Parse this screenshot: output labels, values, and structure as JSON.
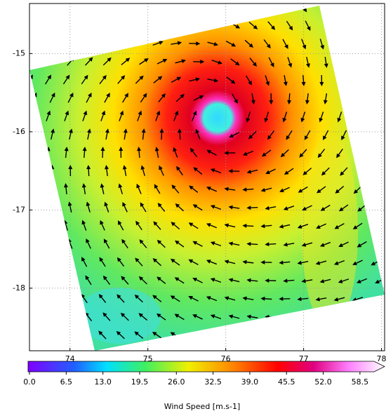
{
  "chart_data": {
    "type": "map",
    "xlim": [
      73.48,
      78.04
    ],
    "ylim": [
      -18.8,
      -14.36
    ],
    "xticks": [
      74,
      75,
      76,
      77,
      78
    ],
    "yticks": [
      -15,
      -16,
      -17,
      -18
    ],
    "grid": true,
    "colorbar": {
      "label": "Wind Speed [m.s-1]",
      "lim": [
        0,
        61
      ],
      "ticks": [
        {
          "value": 0,
          "label": "0.0"
        },
        6.5,
        {
          "value": 13,
          "label": "13.0"
        },
        19.5,
        {
          "value": 26,
          "label": "26.0"
        },
        32.5,
        {
          "value": 39,
          "label": "39.0"
        },
        45.5,
        {
          "value": 52,
          "label": "52.0"
        },
        58.5
      ]
    }
  }
}
